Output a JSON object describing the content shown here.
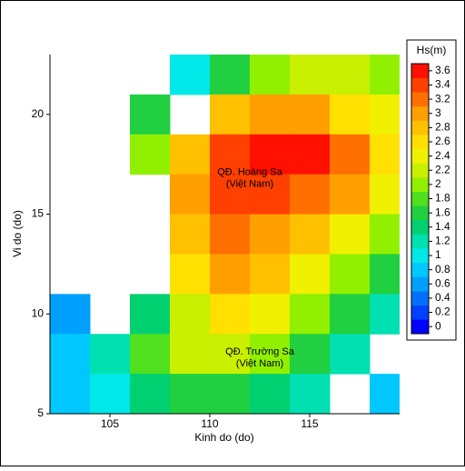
{
  "chart_data": {
    "type": "heatmap",
    "x_label": "Kinh do (do)",
    "y_label": "Vi do (do)",
    "xlim": [
      102,
      119.5
    ],
    "ylim": [
      5,
      23
    ],
    "xticks": [
      105,
      110,
      115
    ],
    "yticks": [
      5,
      10,
      15,
      20
    ],
    "x": [
      103,
      105,
      107,
      109,
      111,
      113,
      115,
      117,
      119
    ],
    "y": [
      22,
      20,
      18,
      16,
      14,
      12,
      10,
      8,
      6
    ],
    "values": [
      [
        null,
        null,
        null,
        1.0,
        1.6,
        2.0,
        2.2,
        2.2,
        2.0
      ],
      [
        null,
        null,
        1.6,
        null,
        2.8,
        3.0,
        3.0,
        2.6,
        2.4
      ],
      [
        null,
        null,
        2.0,
        2.8,
        3.4,
        3.6,
        3.6,
        3.2,
        2.6
      ],
      [
        null,
        null,
        null,
        3.0,
        3.4,
        3.4,
        3.2,
        3.0,
        2.4
      ],
      [
        null,
        null,
        null,
        2.8,
        3.2,
        3.0,
        2.8,
        2.4,
        2.0
      ],
      [
        null,
        null,
        null,
        2.6,
        3.0,
        2.8,
        2.4,
        2.0,
        1.6
      ],
      [
        0.6,
        null,
        1.4,
        2.2,
        2.6,
        2.4,
        2.0,
        1.6,
        1.2
      ],
      [
        0.8,
        1.2,
        1.8,
        2.2,
        2.2,
        2.0,
        1.6,
        1.2,
        null
      ],
      [
        0.8,
        1.0,
        1.4,
        1.6,
        1.6,
        1.4,
        1.2,
        null,
        0.8
      ]
    ],
    "annotations": [
      {
        "lines": [
          "QĐ. Hoàng Sa",
          "(Việt Nam)"
        ],
        "x": 112,
        "y": 16.8
      },
      {
        "lines": [
          "QĐ. Trường Sa",
          "(Việt Nam)"
        ],
        "x": 112.5,
        "y": 7.8
      }
    ],
    "colorbar": {
      "title": "Hs(m)",
      "levels": [
        0,
        0.2,
        0.4,
        0.6,
        0.8,
        1,
        1.2,
        1.4,
        1.6,
        1.8,
        2,
        2.2,
        2.4,
        2.6,
        2.8,
        3,
        3.2,
        3.4,
        3.6
      ],
      "colors": [
        "#0000ff",
        "#0040ff",
        "#0070ff",
        "#00a0ff",
        "#00c8ff",
        "#00e8e8",
        "#00e0b0",
        "#00d070",
        "#20d040",
        "#50e020",
        "#90f000",
        "#c8f000",
        "#f0f000",
        "#ffe000",
        "#ffc000",
        "#ffa000",
        "#ff7000",
        "#ff4000",
        "#ff1000"
      ]
    }
  }
}
